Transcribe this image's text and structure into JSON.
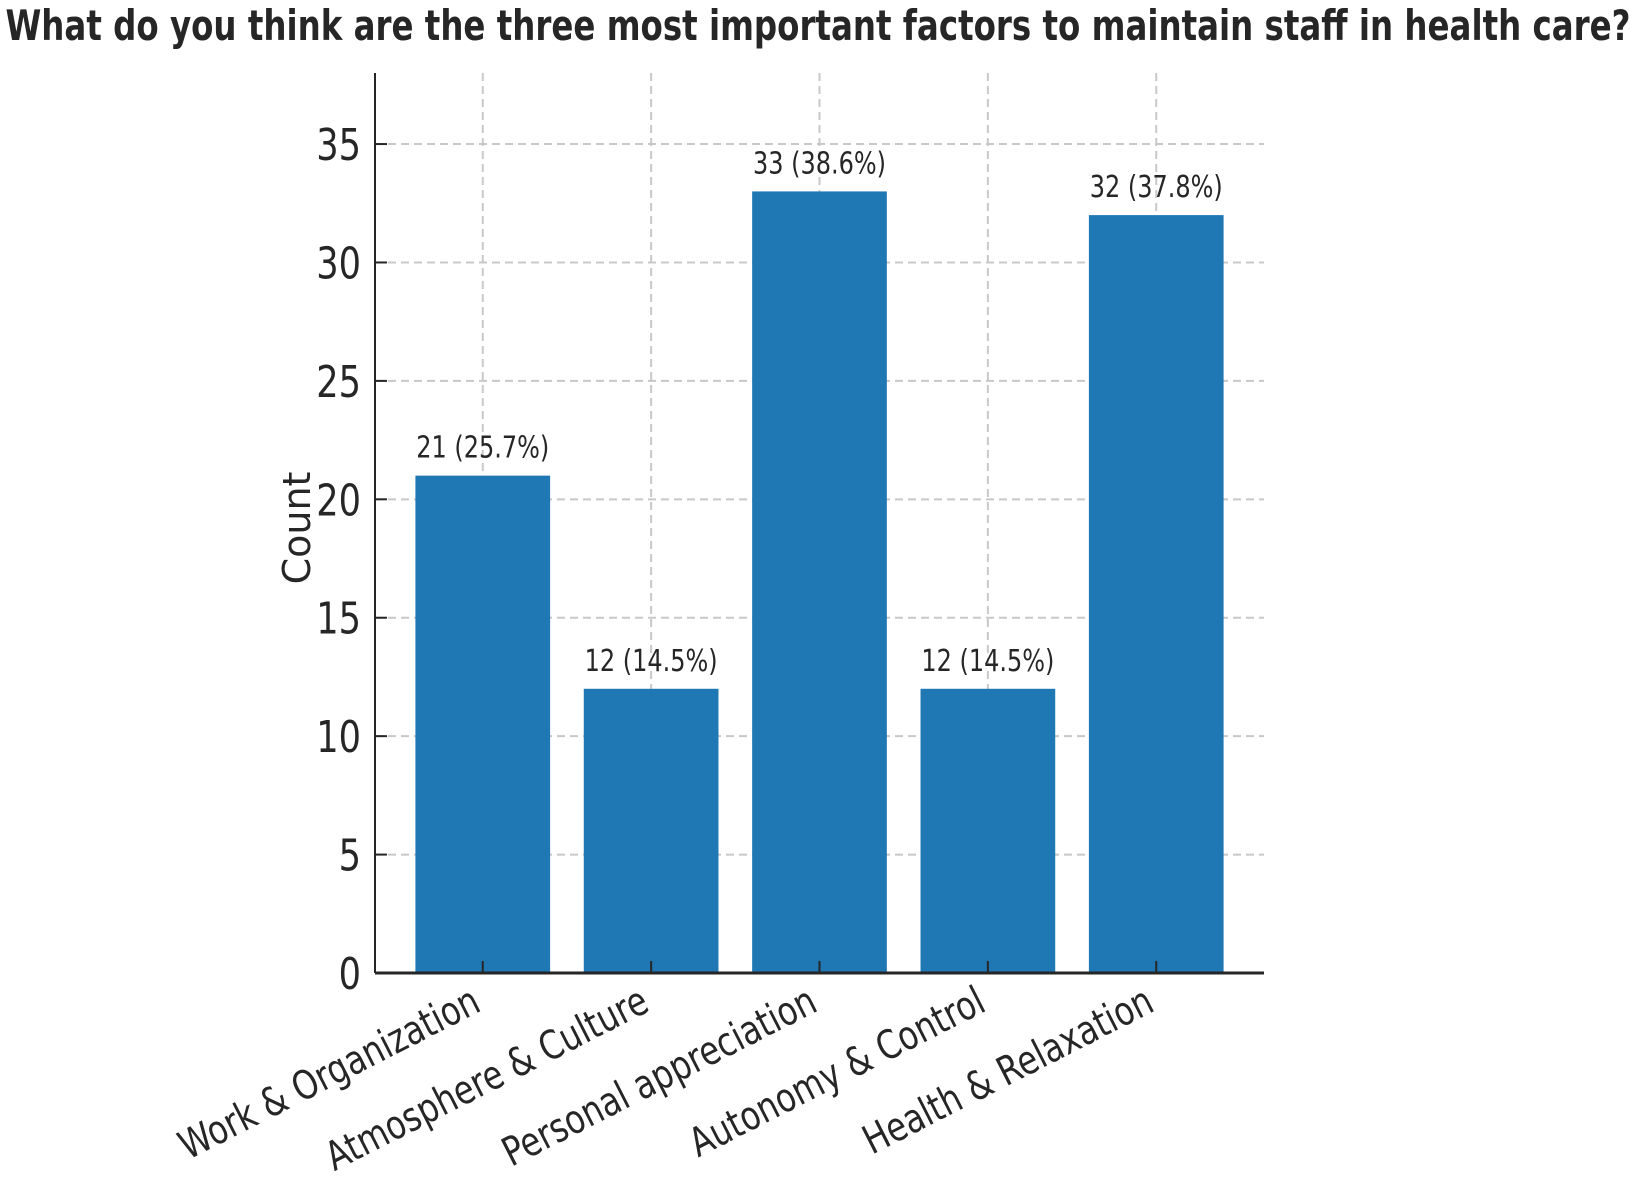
{
  "chart_data": {
    "type": "bar",
    "title": "What do you think are the three most important factors to maintain staff in health care?",
    "xlabel": "",
    "ylabel": "Count",
    "categories": [
      "Work & Organization",
      "Atmosphere & Culture",
      "Personal appreciation",
      "Autonomy & Control",
      "Health & Relaxation"
    ],
    "values": [
      21,
      12,
      33,
      12,
      32
    ],
    "data_labels": [
      "21 (25.7%)",
      "12 (14.5%)",
      "33 (38.6%)",
      "12 (14.5%)",
      "32 (37.8%)"
    ],
    "yticks": [
      0,
      5,
      10,
      15,
      20,
      25,
      30,
      35
    ],
    "ylim": [
      0,
      38
    ],
    "grid": true,
    "bar_color": "#1f77b4"
  }
}
